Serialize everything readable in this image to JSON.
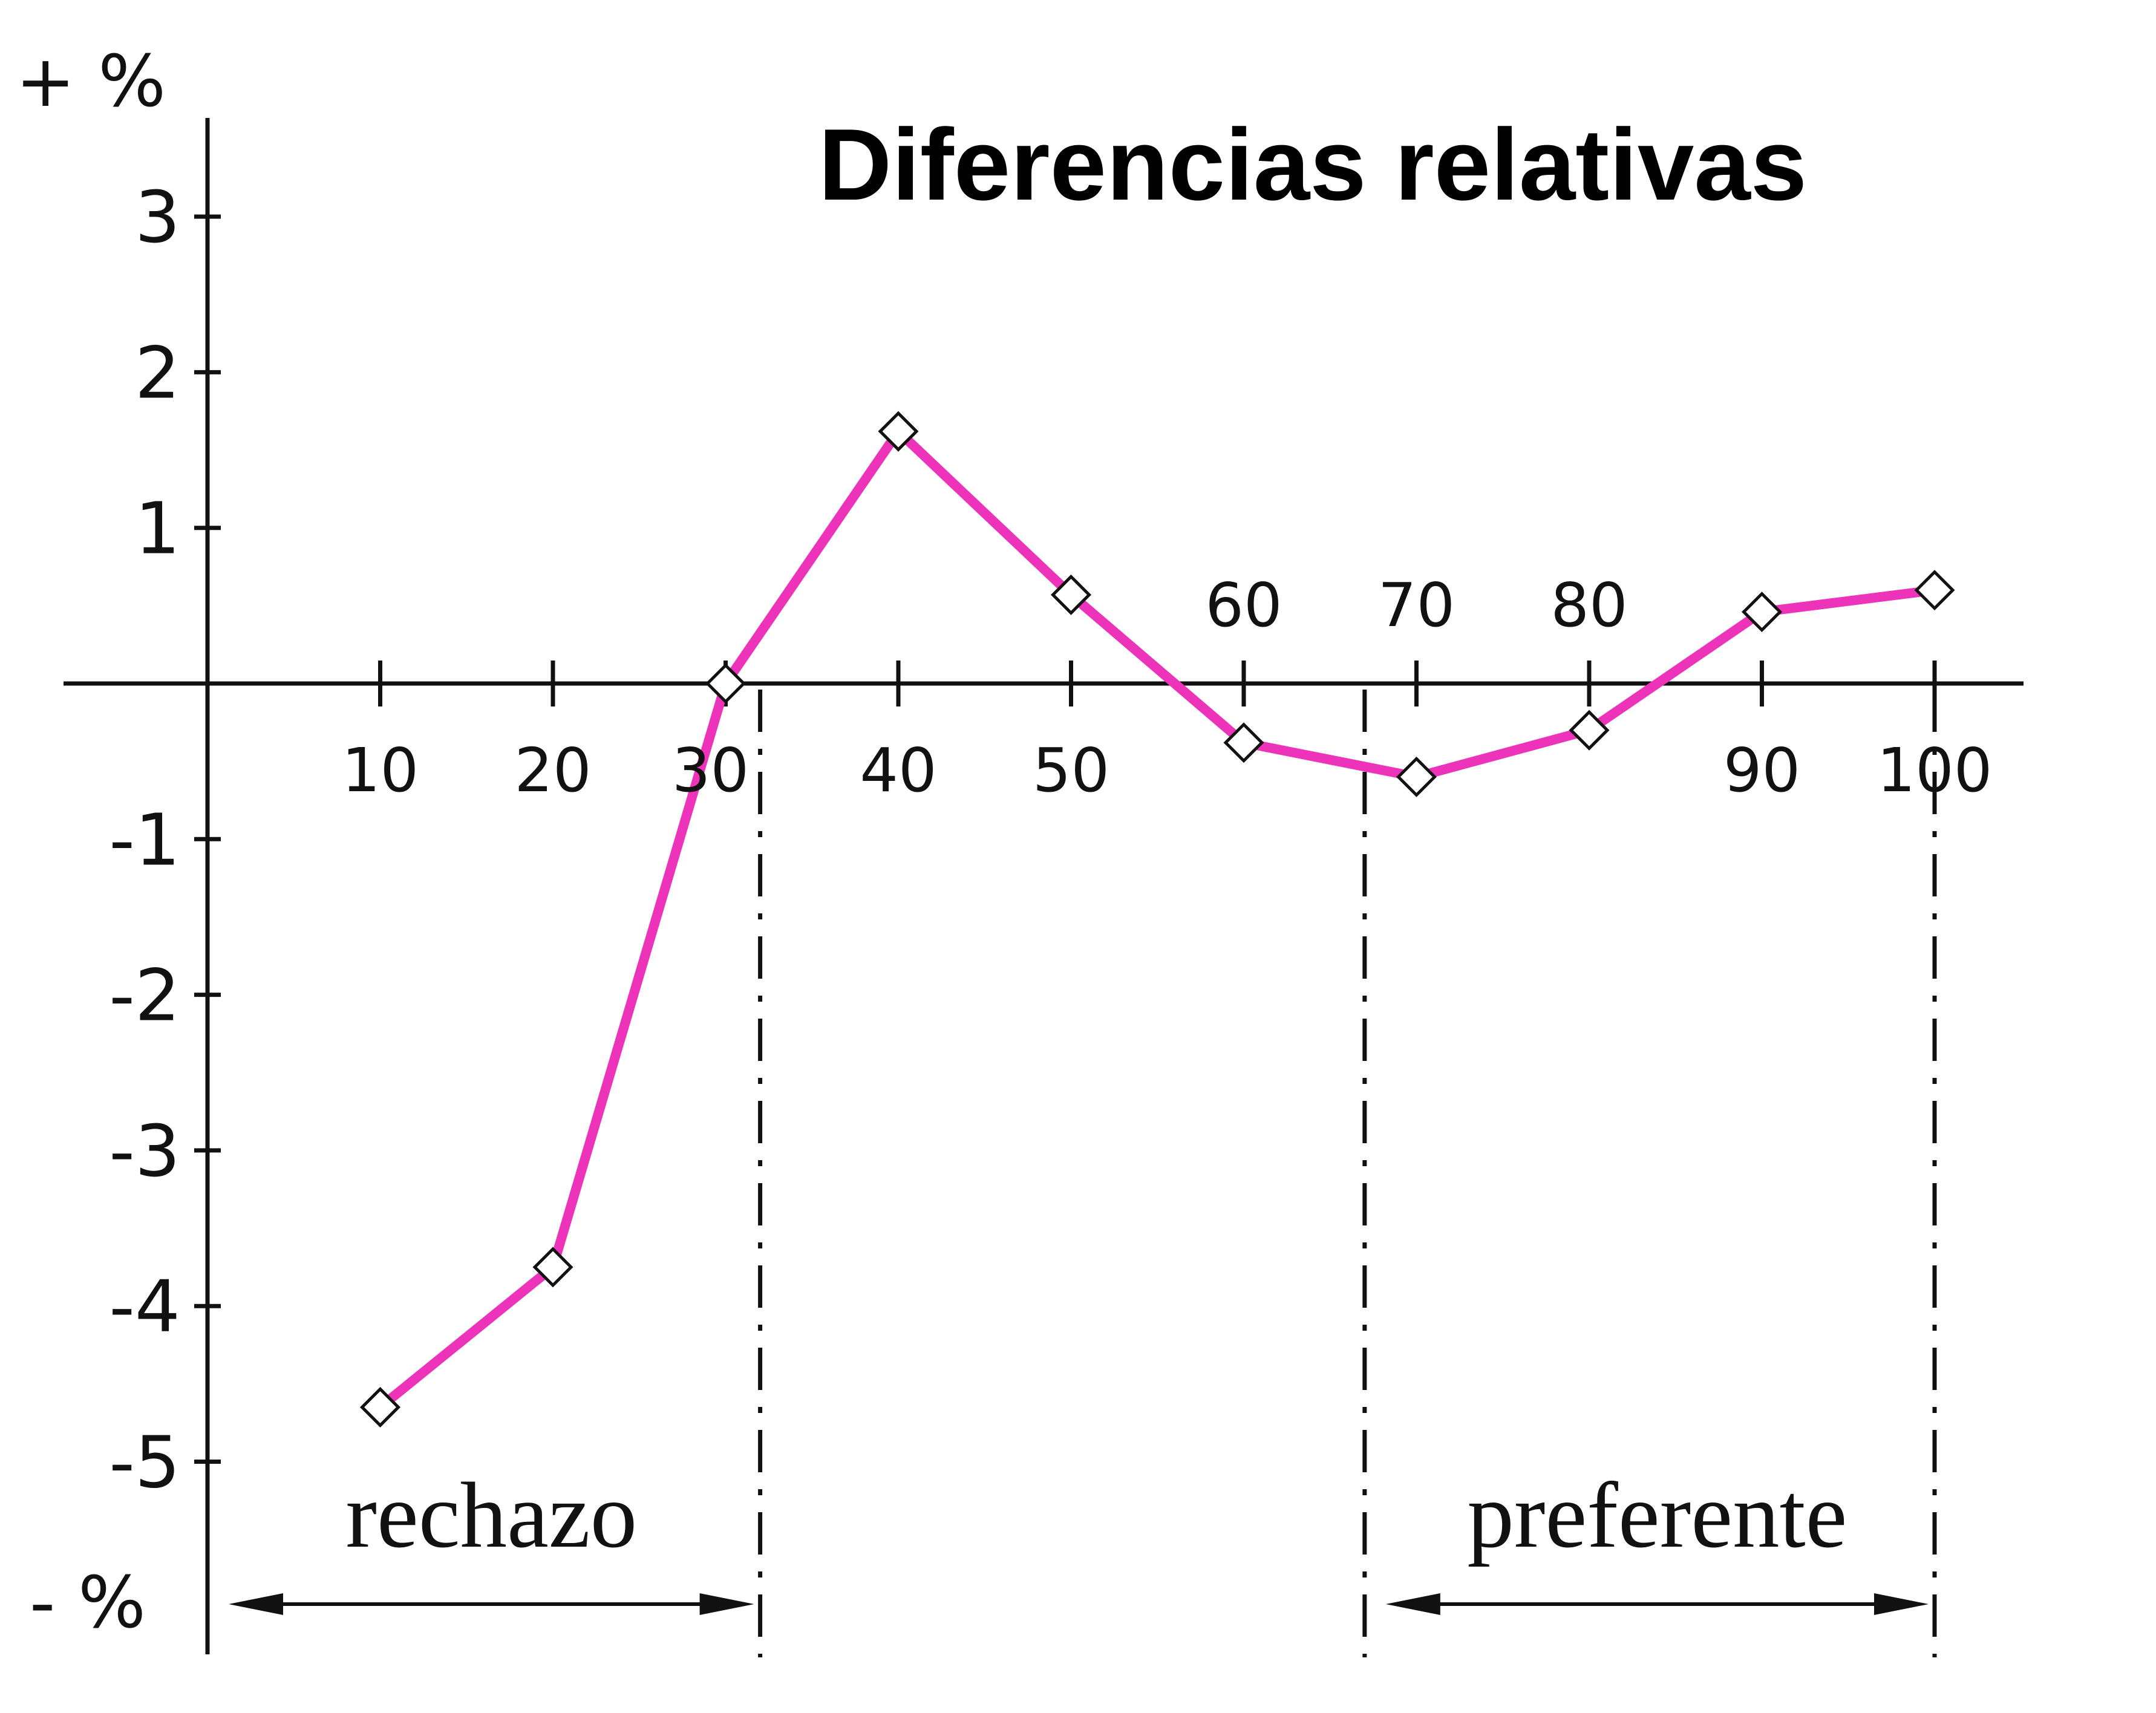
{
  "chart_data": {
    "type": "line",
    "title": "Diferencias relativas",
    "y_top_label": "+ %",
    "y_bottom_label": "- %",
    "xlabel": "",
    "ylabel": "",
    "xlim": [
      0,
      105
    ],
    "ylim": [
      -6,
      3.7
    ],
    "x_ticks": [
      10,
      20,
      30,
      40,
      50,
      60,
      70,
      80,
      90,
      100
    ],
    "y_ticks": [
      3,
      2,
      1,
      -1,
      -2,
      -3,
      -4,
      -5
    ],
    "series": [
      {
        "color": "#ee33bb",
        "marker": "diamond",
        "points": [
          {
            "x": 10,
            "y": -4.65
          },
          {
            "x": 20,
            "y": -3.75
          },
          {
            "x": 30,
            "y": 0.0
          },
          {
            "x": 40,
            "y": 1.62
          },
          {
            "x": 50,
            "y": 0.57
          },
          {
            "x": 60,
            "y": -0.38
          },
          {
            "x": 70,
            "y": -0.6
          },
          {
            "x": 80,
            "y": -0.3
          },
          {
            "x": 90,
            "y": 0.46
          },
          {
            "x": 100,
            "y": 0.6
          }
        ]
      }
    ],
    "ranges": [
      {
        "label": "rechazo",
        "from": 0,
        "to": 32
      },
      {
        "label": "preferente",
        "from": 67,
        "to": 100
      }
    ],
    "grid": false,
    "legend": "none"
  }
}
